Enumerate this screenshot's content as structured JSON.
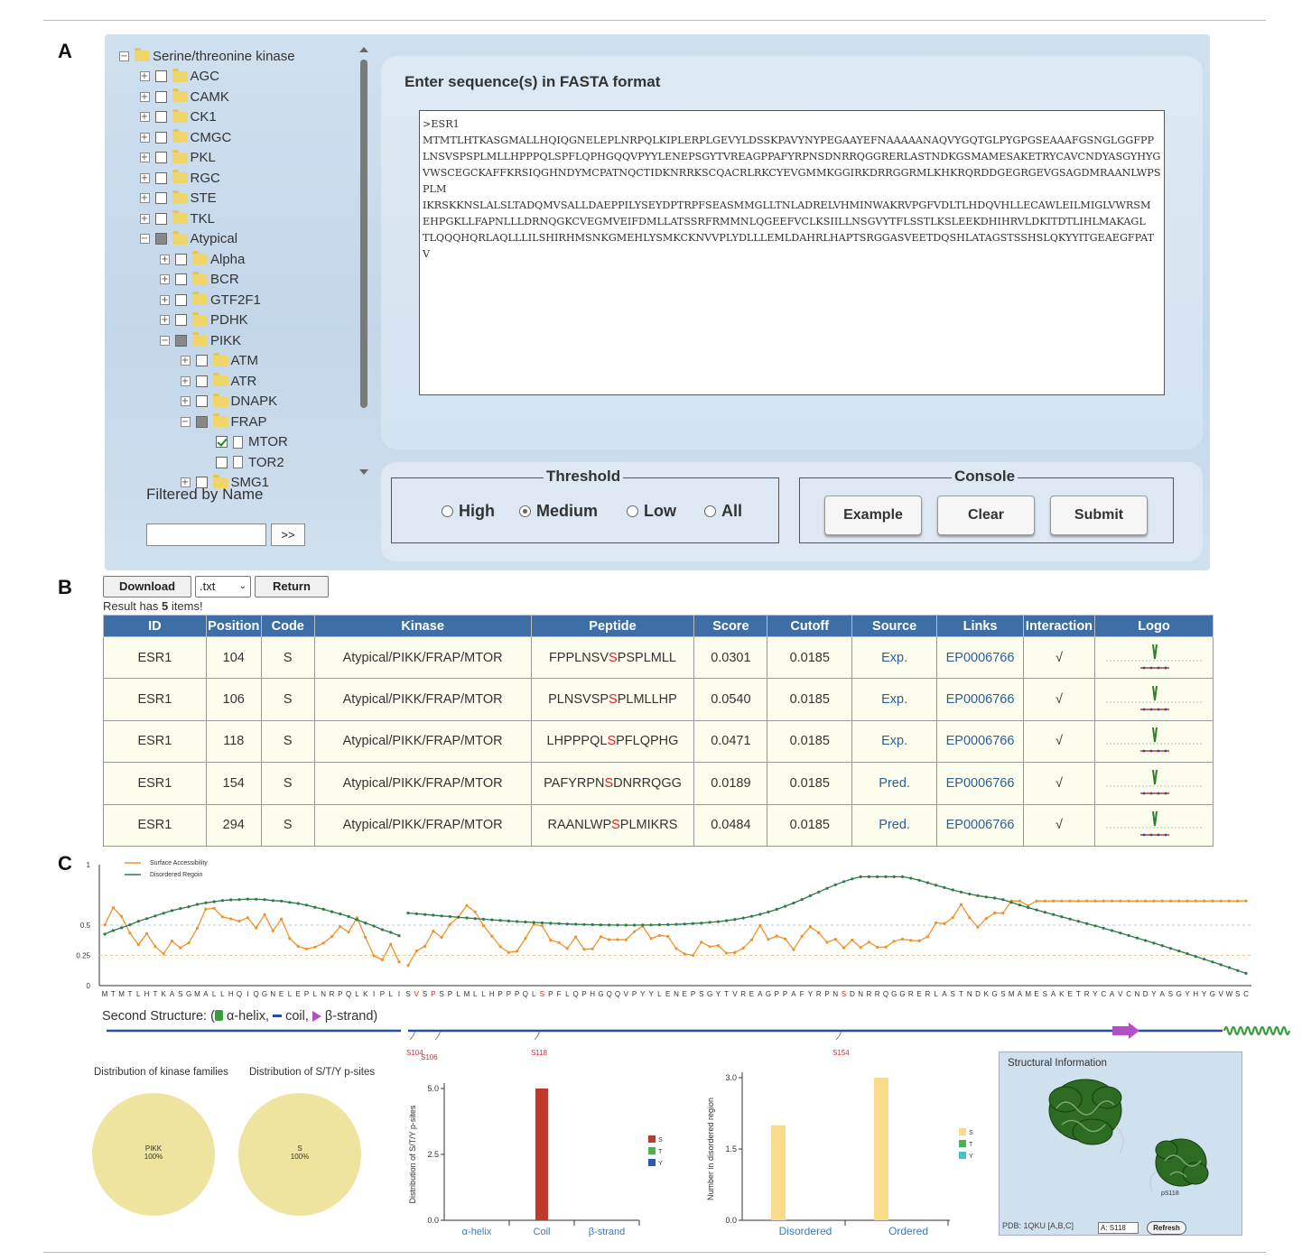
{
  "panels": {
    "a": "A",
    "b": "B",
    "c": "C"
  },
  "tree": {
    "nodes": [
      {
        "label": "Serine/threonine kinase",
        "level": 0,
        "exp": "−",
        "cb": "none"
      },
      {
        "label": "AGC",
        "level": 1,
        "exp": "+",
        "cb": "empty"
      },
      {
        "label": "CAMK",
        "level": 1,
        "exp": "+",
        "cb": "empty"
      },
      {
        "label": "CK1",
        "level": 1,
        "exp": "+",
        "cb": "empty"
      },
      {
        "label": "CMGC",
        "level": 1,
        "exp": "+",
        "cb": "empty"
      },
      {
        "label": "PKL",
        "level": 1,
        "exp": "+",
        "cb": "empty"
      },
      {
        "label": "RGC",
        "level": 1,
        "exp": "+",
        "cb": "empty"
      },
      {
        "label": "STE",
        "level": 1,
        "exp": "+",
        "cb": "empty"
      },
      {
        "label": "TKL",
        "level": 1,
        "exp": "+",
        "cb": "empty"
      },
      {
        "label": "Atypical",
        "level": 1,
        "exp": "−",
        "cb": "partial"
      },
      {
        "label": "Alpha",
        "level": 2,
        "exp": "+",
        "cb": "empty"
      },
      {
        "label": "BCR",
        "level": 2,
        "exp": "+",
        "cb": "empty"
      },
      {
        "label": "GTF2F1",
        "level": 2,
        "exp": "+",
        "cb": "empty"
      },
      {
        "label": "PDHK",
        "level": 2,
        "exp": "+",
        "cb": "empty"
      },
      {
        "label": "PIKK",
        "level": 2,
        "exp": "−",
        "cb": "partial"
      },
      {
        "label": "ATM",
        "level": 3,
        "exp": "+",
        "cb": "empty"
      },
      {
        "label": "ATR",
        "level": 3,
        "exp": "+",
        "cb": "empty"
      },
      {
        "label": "DNAPK",
        "level": 3,
        "exp": "+",
        "cb": "empty"
      },
      {
        "label": "FRAP",
        "level": 3,
        "exp": "−",
        "cb": "partial"
      },
      {
        "label": "MTOR",
        "level": 4,
        "exp": "",
        "cb": "checked",
        "leaf": true
      },
      {
        "label": "TOR2",
        "level": 4,
        "exp": "",
        "cb": "empty",
        "leaf": true
      },
      {
        "label": "SMG1",
        "level": 3,
        "exp": "+",
        "cb": "empty"
      }
    ]
  },
  "filter": {
    "label": "Filtered by Name",
    "button": ">>",
    "value": ""
  },
  "sequence": {
    "title": "Enter sequence(s) in FASTA format",
    "text": ">ESR1\nMTMTLHTKASGMALLHQIQGNELEPLNRPQLKIPLERPLGEVYLDSSKPAVYNYPEGAAYEFNAAAAANAQVYGQTGLPYGPGSEAAAFGSNGLGGFPP\nLNSVSPSPLMLLHPPPQLSPFLQPHGQQVPYYLENEPSGYTVREAGPPAFYRPNSDNRRQGGRERLASTNDKGSMAMESAKETRYCAVCNDYASGYHYG\nVWSCEGCKAFFKRSIQGHNDYMCPATNQCTIDKNRRKSCQACRLRKCYEVGMMKGGIRKDRRGGRMLKHKRQRDDGEGRGEVGSAGDMRAANLWPSPLM\nIKRSKKNSLALSLTADQMVSALLDAEPPILYSEYDPTRPFSEASMMGLLTNLADRELVHMINWAKRVPGFVDLTLHDQVHLLECAWLEILMIGLVWRSM\nEHPGKLLFAPNLLLDRNQGKCVEGMVEIFDMLLATSSRFRMMNLQGEEFVCLKSIILLNSGVYTFLSSTLKSLEEKDHIHRVLDKITDTLIHLMAKAGL\nTLQQQHQRLAQLLLILSHIRHMSNKGMEHLYSMKCKNVVPLYDLLLEMLDAHRLHAPTSRGGASVEETDQSHLATAGSTSSHSLQKYYITGEAEGFPAT\nV"
  },
  "threshold": {
    "legend": "Threshold",
    "options": [
      "High",
      "Medium",
      "Low",
      "All"
    ],
    "selected": "Medium"
  },
  "console": {
    "legend": "Console",
    "example": "Example",
    "clear": "Clear",
    "submit": "Submit"
  },
  "results": {
    "download": "Download",
    "format": ".txt",
    "return": "Return",
    "count_prefix": "Result has ",
    "count": "5",
    "count_suffix": " items!",
    "columns": [
      "ID",
      "Position",
      "Code",
      "Kinase",
      "Peptide",
      "Score",
      "Cutoff",
      "Source",
      "Links",
      "Interaction",
      "Logo"
    ],
    "rows": [
      {
        "id": "ESR1",
        "pos": "104",
        "code": "S",
        "kinase": "Atypical/PIKK/FRAP/MTOR",
        "pep_pre": "FPPLNSV",
        "pep_site": "S",
        "pep_post": "PSPLMLL",
        "score": "0.0301",
        "cutoff": "0.0185",
        "source": "Exp.",
        "link": "EP0006766",
        "inter": "√"
      },
      {
        "id": "ESR1",
        "pos": "106",
        "code": "S",
        "kinase": "Atypical/PIKK/FRAP/MTOR",
        "pep_pre": "PLNSVSP",
        "pep_site": "S",
        "pep_post": "PLMLLHP",
        "score": "0.0540",
        "cutoff": "0.0185",
        "source": "Exp.",
        "link": "EP0006766",
        "inter": "√"
      },
      {
        "id": "ESR1",
        "pos": "118",
        "code": "S",
        "kinase": "Atypical/PIKK/FRAP/MTOR",
        "pep_pre": "LHPPPQL",
        "pep_site": "S",
        "pep_post": "PFLQPHG",
        "score": "0.0471",
        "cutoff": "0.0185",
        "source": "Exp.",
        "link": "EP0006766",
        "inter": "√"
      },
      {
        "id": "ESR1",
        "pos": "154",
        "code": "S",
        "kinase": "Atypical/PIKK/FRAP/MTOR",
        "pep_pre": "PAFYRPN",
        "pep_site": "S",
        "pep_post": "DNRRQGG",
        "score": "0.0189",
        "cutoff": "0.0185",
        "source": "Pred.",
        "link": "EP0006766",
        "inter": "√"
      },
      {
        "id": "ESR1",
        "pos": "294",
        "code": "S",
        "kinase": "Atypical/PIKK/FRAP/MTOR",
        "pep_pre": "RAANLWP",
        "pep_site": "S",
        "pep_post": "PLMIKRS",
        "score": "0.0484",
        "cutoff": "0.0185",
        "source": "Pred.",
        "link": "EP0006766",
        "inter": "√"
      }
    ]
  },
  "profile": {
    "legend": [
      "Surface Accessibility",
      "Disordered Regoin"
    ],
    "colors": {
      "surface": "#f0922b",
      "disorder": "#2f7a46"
    },
    "yticks": [
      "1",
      "0.5",
      "0.25",
      "0"
    ],
    "left_seq": "MTMTLHTKASGMALLHQIQGNELEPLNRPQLKIPLI",
    "right_seq": "SVSPSPLMLLHPPPQLSPFLQPHGQQVPYYLENEPSGYTVREAGPPAFYRPNSDNRRQGGRERLASTNDKGSMAMESAKETRYCAVCNDYASGYHYGVWSC",
    "highlight_right_idx": [
      1,
      3,
      16,
      52
    ]
  },
  "second_structure": {
    "label": "Second Structure: (",
    "helix": " α-helix, ",
    "coil": " coil, ",
    "strand": " β-strand)",
    "sites": [
      "S104",
      "S106",
      "S118",
      "S154"
    ]
  },
  "pies": [
    {
      "title": "Distribution of kinase families",
      "label": "PIKK",
      "pct": "100%"
    },
    {
      "title": "Distribution of S/T/Y p-sites",
      "label": "S",
      "pct": "100%"
    }
  ],
  "bar1": {
    "ylabel": "Distribution of S/T/Y p-sites",
    "yticks": [
      "5.0",
      "2.5",
      "0.0"
    ],
    "categories": [
      "α-helix",
      "Coil",
      "β-strand"
    ],
    "legend": [
      "S",
      "T",
      "Y"
    ],
    "legend_colors": [
      "#c0392b",
      "#4fb04f",
      "#2e58b8"
    ]
  },
  "bar2": {
    "ylabel": "Number in disordered region",
    "yticks": [
      "3.0",
      "1.5",
      "0.0"
    ],
    "categories": [
      "Disordered",
      "Ordered"
    ],
    "legend": [
      "S",
      "T",
      "Y"
    ],
    "legend_colors": [
      "#f8dc8c",
      "#4fb04f",
      "#3ec5c5"
    ]
  },
  "chart_data": [
    {
      "type": "bar",
      "ylabel": "Distribution of S/T/Y p-sites",
      "categories": [
        "α-helix",
        "Coil",
        "β-strand"
      ],
      "series": [
        {
          "name": "S",
          "values": [
            0,
            5,
            0
          ]
        },
        {
          "name": "T",
          "values": [
            0,
            0,
            0
          ]
        },
        {
          "name": "Y",
          "values": [
            0,
            0,
            0
          ]
        }
      ],
      "ylim": [
        0,
        5
      ]
    },
    {
      "type": "bar",
      "ylabel": "Number in disordered region",
      "categories": [
        "Disordered",
        "Ordered"
      ],
      "series": [
        {
          "name": "S",
          "values": [
            2,
            3
          ]
        },
        {
          "name": "T",
          "values": [
            0,
            0
          ]
        },
        {
          "name": "Y",
          "values": [
            0,
            0
          ]
        }
      ],
      "ylim": [
        0,
        3
      ]
    },
    {
      "type": "pie",
      "title": "Distribution of kinase families",
      "categories": [
        "PIKK"
      ],
      "values": [
        100
      ]
    },
    {
      "type": "pie",
      "title": "Distribution of S/T/Y p-sites",
      "categories": [
        "S"
      ],
      "values": [
        100
      ]
    }
  ],
  "structure": {
    "title": "Structural Information",
    "footer": "PDB: 1QKU [A,B,C]",
    "select": "A: S118",
    "refresh": "Refresh",
    "site_label": "pS118"
  }
}
